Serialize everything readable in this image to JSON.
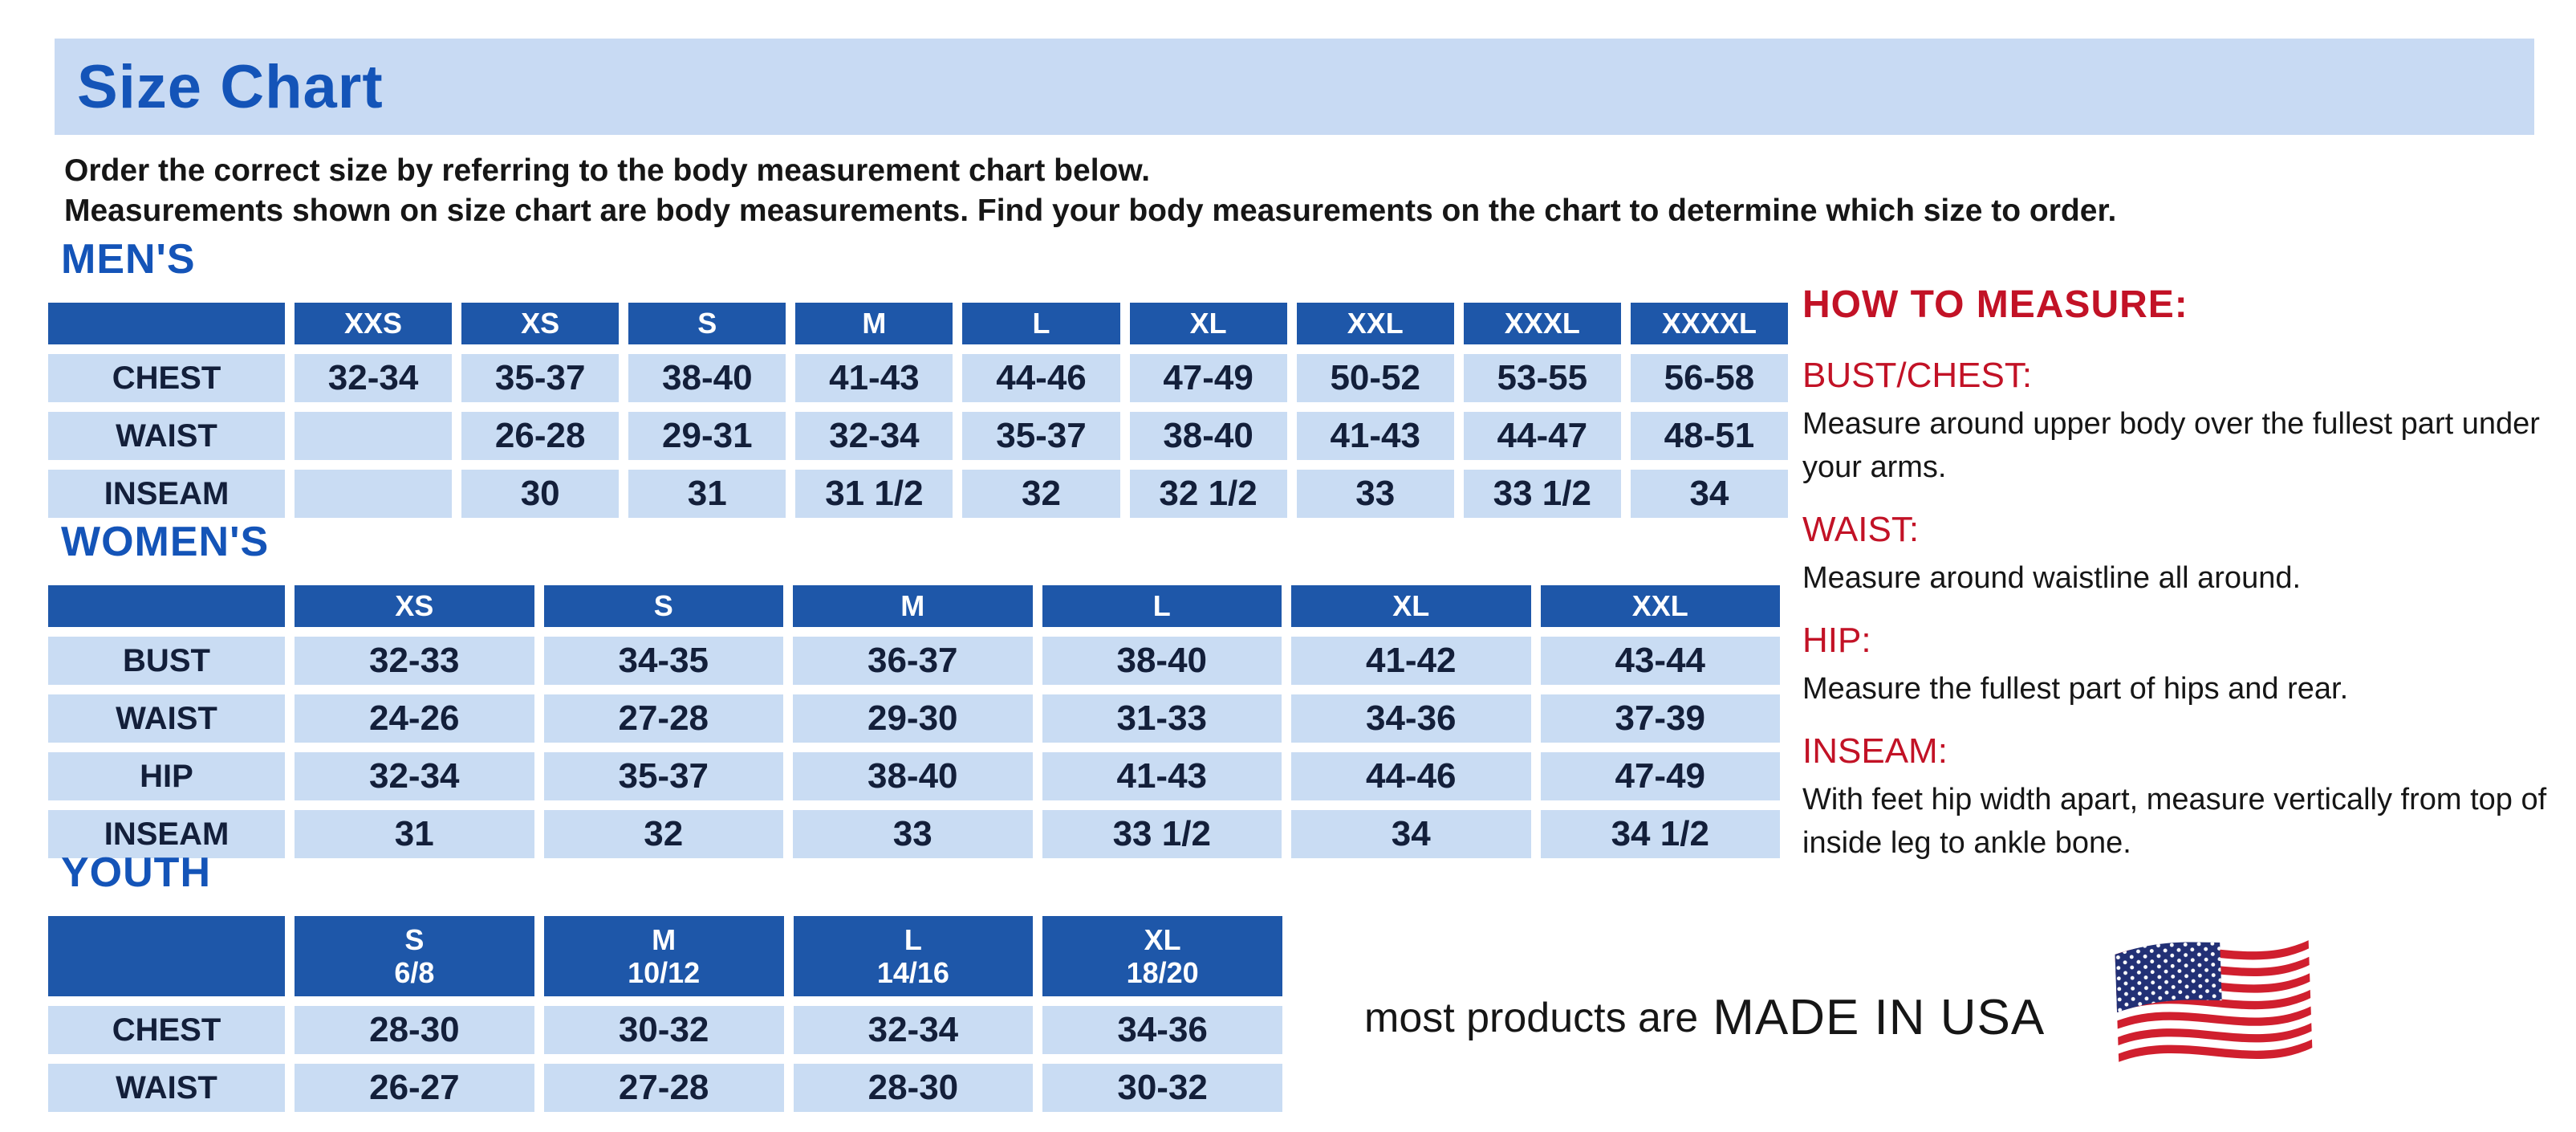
{
  "page": {
    "title": "Size Chart",
    "intro_line1": "Order the correct size by referring to the body measurement chart below.",
    "intro_line2": "Measurements shown on size chart are body measurements.  Find your body measurements on the chart to determine which size to order."
  },
  "tables": [
    {
      "id": "mens",
      "section_title": "MEN'S",
      "columns": [
        "XXS",
        "XS",
        "S",
        "M",
        "L",
        "XL",
        "XXL",
        "XXXL",
        "XXXXL"
      ],
      "rows": [
        {
          "label": "CHEST",
          "values": [
            "32-34",
            "35-37",
            "38-40",
            "41-43",
            "44-46",
            "47-49",
            "50-52",
            "53-55",
            "56-58"
          ]
        },
        {
          "label": "WAIST",
          "values": [
            "",
            "26-28",
            "29-31",
            "32-34",
            "35-37",
            "38-40",
            "41-43",
            "44-47",
            "48-51"
          ]
        },
        {
          "label": "INSEAM",
          "values": [
            "",
            "30",
            "31",
            "31 1/2",
            "32",
            "32 1/2",
            "33",
            "33 1/2",
            "34"
          ]
        }
      ]
    },
    {
      "id": "womens",
      "section_title": "WOMEN'S",
      "columns": [
        "XS",
        "S",
        "M",
        "L",
        "XL",
        "XXL"
      ],
      "rows": [
        {
          "label": "BUST",
          "values": [
            "32-33",
            "34-35",
            "36-37",
            "38-40",
            "41-42",
            "43-44"
          ]
        },
        {
          "label": "WAIST",
          "values": [
            "24-26",
            "27-28",
            "29-30",
            "31-33",
            "34-36",
            "37-39"
          ]
        },
        {
          "label": "HIP",
          "values": [
            "32-34",
            "35-37",
            "38-40",
            "41-43",
            "44-46",
            "47-49"
          ]
        },
        {
          "label": "INSEAM",
          "values": [
            "31",
            "32",
            "33",
            "33 1/2",
            "34",
            "34 1/2"
          ]
        }
      ]
    },
    {
      "id": "youth",
      "section_title": "YOUTH",
      "columns": [
        "S\n6/8",
        "M\n10/12",
        "L\n14/16",
        "XL\n18/20"
      ],
      "rows": [
        {
          "label": "CHEST",
          "values": [
            "28-30",
            "30-32",
            "32-34",
            "34-36"
          ]
        },
        {
          "label": "WAIST",
          "values": [
            "26-27",
            "27-28",
            "28-30",
            "30-32"
          ]
        }
      ]
    }
  ],
  "how_to_measure": {
    "title": "HOW TO MEASURE:",
    "items": [
      {
        "label": "BUST/CHEST:",
        "text": "Measure around upper body over the fullest part under your arms."
      },
      {
        "label": "WAIST:",
        "text": "Measure around waistline all around."
      },
      {
        "label": "HIP:",
        "text": "Measure the fullest part of hips and rear."
      },
      {
        "label": "INSEAM:",
        "text": "With feet hip width apart, measure vertically from top of inside leg to ankle bone."
      }
    ]
  },
  "footer": {
    "prefix": "most products are",
    "emphasis": "MADE IN USA",
    "flag_icon": "us-flag-icon"
  },
  "colors": {
    "banner-bg": "#c8daf3",
    "heading-blue": "#1454b8",
    "header-blue": "#1e57a9",
    "cell-bg": "#c9dcf3",
    "cell-text": "#131f3a",
    "accent-red": "#c21226",
    "text-black": "#161616"
  }
}
